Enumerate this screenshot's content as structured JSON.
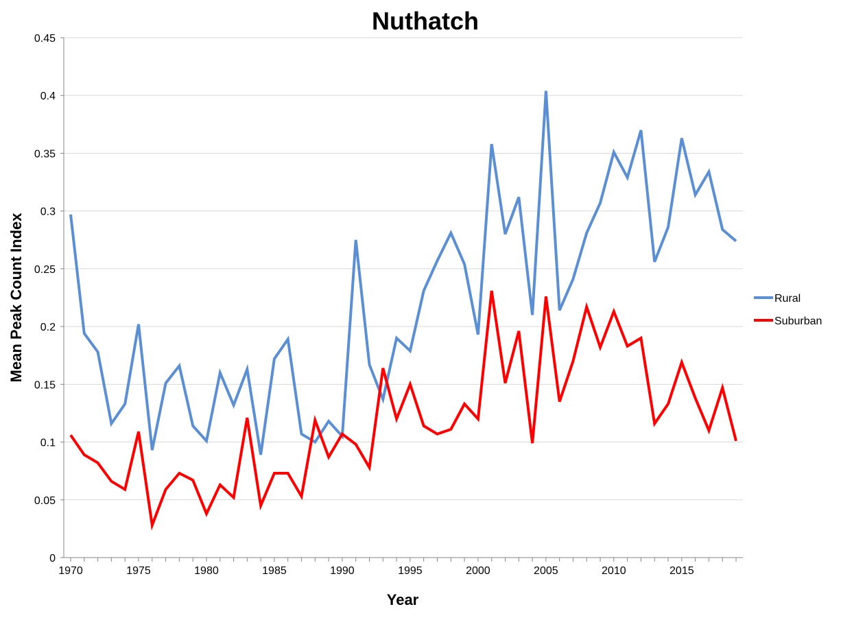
{
  "chart_data": {
    "type": "line",
    "title": "Nuthatch",
    "xlabel": "Year",
    "ylabel": "Mean Peak Count Index",
    "xlim": [
      1970,
      2019
    ],
    "ylim": [
      0,
      0.45
    ],
    "y_ticks": [
      "0",
      "0.05",
      "0.1",
      "0.15",
      "0.2",
      "0.25",
      "0.3",
      "0.35",
      "0.4",
      "0.45"
    ],
    "x_ticks": [
      "1970",
      "1975",
      "1980",
      "1985",
      "1990",
      "1995",
      "2000",
      "2005",
      "2010",
      "2015"
    ],
    "grid": "horizontal",
    "legend": "right",
    "x": [
      1970,
      1971,
      1972,
      1973,
      1974,
      1975,
      1976,
      1977,
      1978,
      1979,
      1980,
      1981,
      1982,
      1983,
      1984,
      1985,
      1986,
      1987,
      1988,
      1989,
      1990,
      1991,
      1992,
      1993,
      1994,
      1995,
      1996,
      1997,
      1998,
      1999,
      2000,
      2001,
      2002,
      2003,
      2004,
      2005,
      2006,
      2007,
      2008,
      2009,
      2010,
      2011,
      2012,
      2013,
      2014,
      2015,
      2016,
      2017,
      2018,
      2019
    ],
    "series": [
      {
        "name": "Rural",
        "color": "#5b8fd4",
        "values": [
          0.297,
          0.194,
          0.178,
          0.116,
          0.133,
          0.202,
          0.093,
          0.151,
          0.166,
          0.114,
          0.101,
          0.16,
          0.132,
          0.163,
          0.089,
          0.172,
          0.189,
          0.107,
          0.1,
          0.118,
          0.105,
          0.275,
          0.167,
          0.137,
          0.19,
          0.179,
          0.231,
          0.257,
          0.281,
          0.254,
          0.193,
          0.358,
          0.28,
          0.312,
          0.21,
          0.404,
          0.214,
          0.241,
          0.281,
          0.307,
          0.351,
          0.329,
          0.37,
          0.256,
          0.286,
          0.363,
          0.314,
          0.334,
          0.284,
          0.274
        ]
      },
      {
        "name": "Suburban",
        "color": "#ff0000",
        "values": [
          0.106,
          0.089,
          0.082,
          0.066,
          0.059,
          0.109,
          0.028,
          0.059,
          0.073,
          0.067,
          0.038,
          0.063,
          0.052,
          0.121,
          0.045,
          0.073,
          0.073,
          0.053,
          0.119,
          0.087,
          0.107,
          0.098,
          0.078,
          0.164,
          0.12,
          0.15,
          0.114,
          0.107,
          0.111,
          0.133,
          0.12,
          0.231,
          0.151,
          0.196,
          0.099,
          0.226,
          0.135,
          0.17,
          0.217,
          0.182,
          0.213,
          0.183,
          0.19,
          0.116,
          0.133,
          0.169,
          0.138,
          0.11,
          0.147,
          0.101
        ]
      }
    ]
  }
}
